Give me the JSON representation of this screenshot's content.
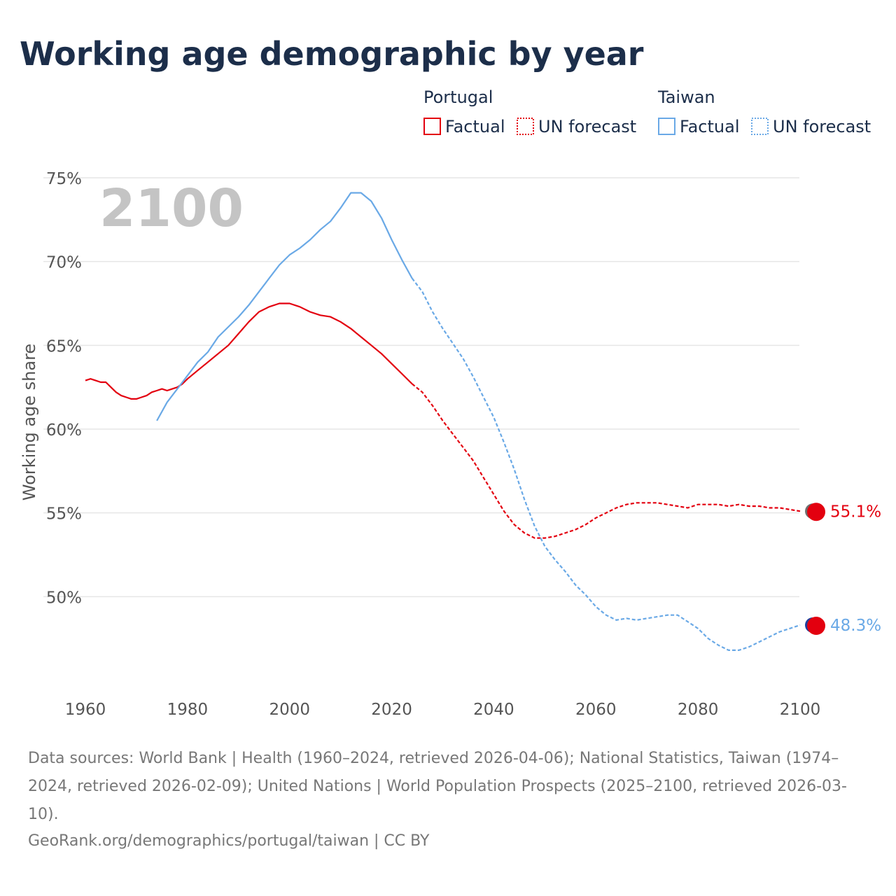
{
  "title": "Working age demographic by year",
  "legend": {
    "groups": [
      {
        "name": "Portugal",
        "color": "#e3000f",
        "factual_label": "Factual",
        "forecast_label": "UN forecast"
      },
      {
        "name": "Taiwan",
        "color": "#6aa9e6",
        "factual_label": "Factual",
        "forecast_label": "UN forecast"
      }
    ]
  },
  "year_label": "2100",
  "chart_data": {
    "type": "line",
    "title": "Working age demographic by year",
    "xlabel": "",
    "ylabel": "Working age share",
    "xlim": [
      1960,
      2103
    ],
    "ylim": [
      45,
      75
    ],
    "x_ticks": [
      1960,
      1980,
      2000,
      2020,
      2040,
      2060,
      2080,
      2100
    ],
    "y_ticks": [
      50,
      55,
      60,
      65,
      70,
      75
    ],
    "y_tick_labels": [
      "50%",
      "55%",
      "60%",
      "65%",
      "70%",
      "75%"
    ],
    "forecast_start": 2024,
    "series": [
      {
        "name": "Portugal",
        "color": "#e3000f",
        "end_label": "55.1%",
        "points": [
          [
            1960,
            62.9
          ],
          [
            1961,
            63.0
          ],
          [
            1962,
            62.9
          ],
          [
            1963,
            62.8
          ],
          [
            1964,
            62.8
          ],
          [
            1965,
            62.5
          ],
          [
            1966,
            62.2
          ],
          [
            1967,
            62.0
          ],
          [
            1968,
            61.9
          ],
          [
            1969,
            61.8
          ],
          [
            1970,
            61.8
          ],
          [
            1971,
            61.9
          ],
          [
            1972,
            62.0
          ],
          [
            1973,
            62.2
          ],
          [
            1974,
            62.3
          ],
          [
            1975,
            62.4
          ],
          [
            1976,
            62.3
          ],
          [
            1977,
            62.4
          ],
          [
            1978,
            62.5
          ],
          [
            1979,
            62.7
          ],
          [
            1980,
            63.0
          ],
          [
            1982,
            63.5
          ],
          [
            1984,
            64.0
          ],
          [
            1986,
            64.5
          ],
          [
            1988,
            65.0
          ],
          [
            1990,
            65.7
          ],
          [
            1992,
            66.4
          ],
          [
            1994,
            67.0
          ],
          [
            1996,
            67.3
          ],
          [
            1998,
            67.5
          ],
          [
            2000,
            67.5
          ],
          [
            2002,
            67.3
          ],
          [
            2004,
            67.0
          ],
          [
            2006,
            66.8
          ],
          [
            2008,
            66.7
          ],
          [
            2010,
            66.4
          ],
          [
            2012,
            66.0
          ],
          [
            2014,
            65.5
          ],
          [
            2016,
            65.0
          ],
          [
            2018,
            64.5
          ],
          [
            2020,
            63.9
          ],
          [
            2022,
            63.3
          ],
          [
            2024,
            62.7
          ],
          [
            2026,
            62.2
          ],
          [
            2028,
            61.4
          ],
          [
            2030,
            60.5
          ],
          [
            2032,
            59.7
          ],
          [
            2034,
            58.9
          ],
          [
            2036,
            58.1
          ],
          [
            2038,
            57.1
          ],
          [
            2040,
            56.1
          ],
          [
            2042,
            55.1
          ],
          [
            2044,
            54.3
          ],
          [
            2046,
            53.8
          ],
          [
            2048,
            53.5
          ],
          [
            2050,
            53.5
          ],
          [
            2052,
            53.6
          ],
          [
            2054,
            53.8
          ],
          [
            2056,
            54.0
          ],
          [
            2058,
            54.3
          ],
          [
            2060,
            54.7
          ],
          [
            2062,
            55.0
          ],
          [
            2064,
            55.3
          ],
          [
            2066,
            55.5
          ],
          [
            2068,
            55.6
          ],
          [
            2070,
            55.6
          ],
          [
            2072,
            55.6
          ],
          [
            2074,
            55.5
          ],
          [
            2076,
            55.4
          ],
          [
            2078,
            55.3
          ],
          [
            2080,
            55.5
          ],
          [
            2082,
            55.5
          ],
          [
            2084,
            55.5
          ],
          [
            2086,
            55.4
          ],
          [
            2088,
            55.5
          ],
          [
            2090,
            55.4
          ],
          [
            2092,
            55.4
          ],
          [
            2094,
            55.3
          ],
          [
            2096,
            55.3
          ],
          [
            2098,
            55.2
          ],
          [
            2100,
            55.1
          ]
        ]
      },
      {
        "name": "Taiwan",
        "color": "#6aa9e6",
        "end_label": "48.3%",
        "points": [
          [
            1974,
            60.5
          ],
          [
            1976,
            61.6
          ],
          [
            1978,
            62.4
          ],
          [
            1980,
            63.2
          ],
          [
            1982,
            64.0
          ],
          [
            1984,
            64.6
          ],
          [
            1986,
            65.5
          ],
          [
            1988,
            66.1
          ],
          [
            1990,
            66.7
          ],
          [
            1992,
            67.4
          ],
          [
            1994,
            68.2
          ],
          [
            1996,
            69.0
          ],
          [
            1998,
            69.8
          ],
          [
            2000,
            70.4
          ],
          [
            2002,
            70.8
          ],
          [
            2004,
            71.3
          ],
          [
            2006,
            71.9
          ],
          [
            2008,
            72.4
          ],
          [
            2010,
            73.2
          ],
          [
            2012,
            74.1
          ],
          [
            2014,
            74.1
          ],
          [
            2016,
            73.6
          ],
          [
            2018,
            72.6
          ],
          [
            2020,
            71.3
          ],
          [
            2022,
            70.1
          ],
          [
            2024,
            69.0
          ],
          [
            2026,
            68.2
          ],
          [
            2028,
            67.0
          ],
          [
            2030,
            66.0
          ],
          [
            2032,
            65.1
          ],
          [
            2034,
            64.2
          ],
          [
            2036,
            63.1
          ],
          [
            2038,
            61.9
          ],
          [
            2040,
            60.7
          ],
          [
            2042,
            59.2
          ],
          [
            2044,
            57.6
          ],
          [
            2046,
            55.8
          ],
          [
            2048,
            54.2
          ],
          [
            2050,
            53.0
          ],
          [
            2052,
            52.2
          ],
          [
            2054,
            51.5
          ],
          [
            2056,
            50.7
          ],
          [
            2058,
            50.1
          ],
          [
            2060,
            49.4
          ],
          [
            2062,
            48.9
          ],
          [
            2064,
            48.6
          ],
          [
            2066,
            48.7
          ],
          [
            2068,
            48.6
          ],
          [
            2070,
            48.7
          ],
          [
            2072,
            48.8
          ],
          [
            2074,
            48.9
          ],
          [
            2076,
            48.9
          ],
          [
            2078,
            48.5
          ],
          [
            2080,
            48.1
          ],
          [
            2082,
            47.5
          ],
          [
            2084,
            47.1
          ],
          [
            2086,
            46.8
          ],
          [
            2088,
            46.8
          ],
          [
            2090,
            47.0
          ],
          [
            2092,
            47.3
          ],
          [
            2094,
            47.6
          ],
          [
            2096,
            47.9
          ],
          [
            2098,
            48.1
          ],
          [
            2100,
            48.3
          ]
        ]
      }
    ]
  },
  "footer": {
    "sources": "Data sources: World Bank | Health (1960–2024, retrieved 2026-04-06); National Statistics, Taiwan (1974–2024, retrieved 2026-02-09); United Nations | World Population Prospects (2025–2100, retrieved 2026-03-10).",
    "credit": "GeoRank.org/demographics/portugal/taiwan | CC BY"
  }
}
